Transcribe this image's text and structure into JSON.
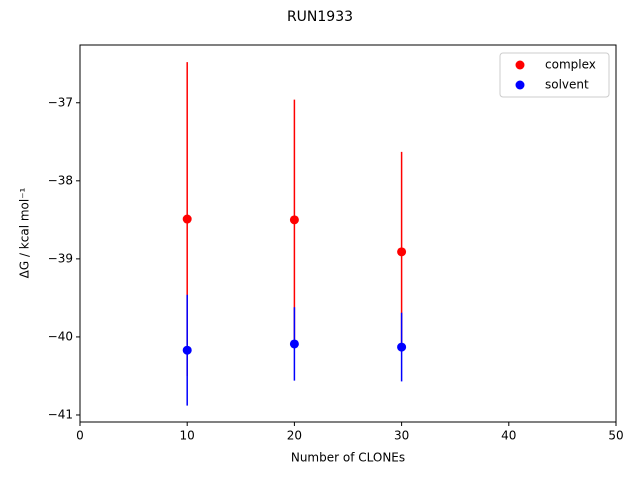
{
  "chart_data": {
    "type": "errorbar-scatter",
    "title": "RUN1933",
    "xlabel": "Number of CLONEs",
    "ylabel": "ΔG / kcal mol⁻¹",
    "x": [
      10,
      20,
      30
    ],
    "series": [
      {
        "name": "complex",
        "color": "#ff0000",
        "values": [
          -38.49,
          -38.5,
          -38.91
        ],
        "errors": [
          2.01,
          1.54,
          1.28
        ]
      },
      {
        "name": "solvent",
        "color": "#0000ff",
        "values": [
          -40.17,
          -40.09,
          -40.13
        ],
        "errors": [
          0.71,
          0.47,
          0.44
        ]
      }
    ],
    "xlim": [
      0,
      50
    ],
    "xticks": [
      0,
      10,
      20,
      30,
      40,
      50
    ],
    "ylim": [
      -41.09,
      -36.26
    ],
    "yticks": [
      {
        "value": -41,
        "label": "−41"
      },
      {
        "value": -40,
        "label": "−40"
      },
      {
        "value": -39,
        "label": "−39"
      },
      {
        "value": -38,
        "label": "−38"
      },
      {
        "value": -37,
        "label": "−37"
      }
    ],
    "legend": "upper right"
  }
}
